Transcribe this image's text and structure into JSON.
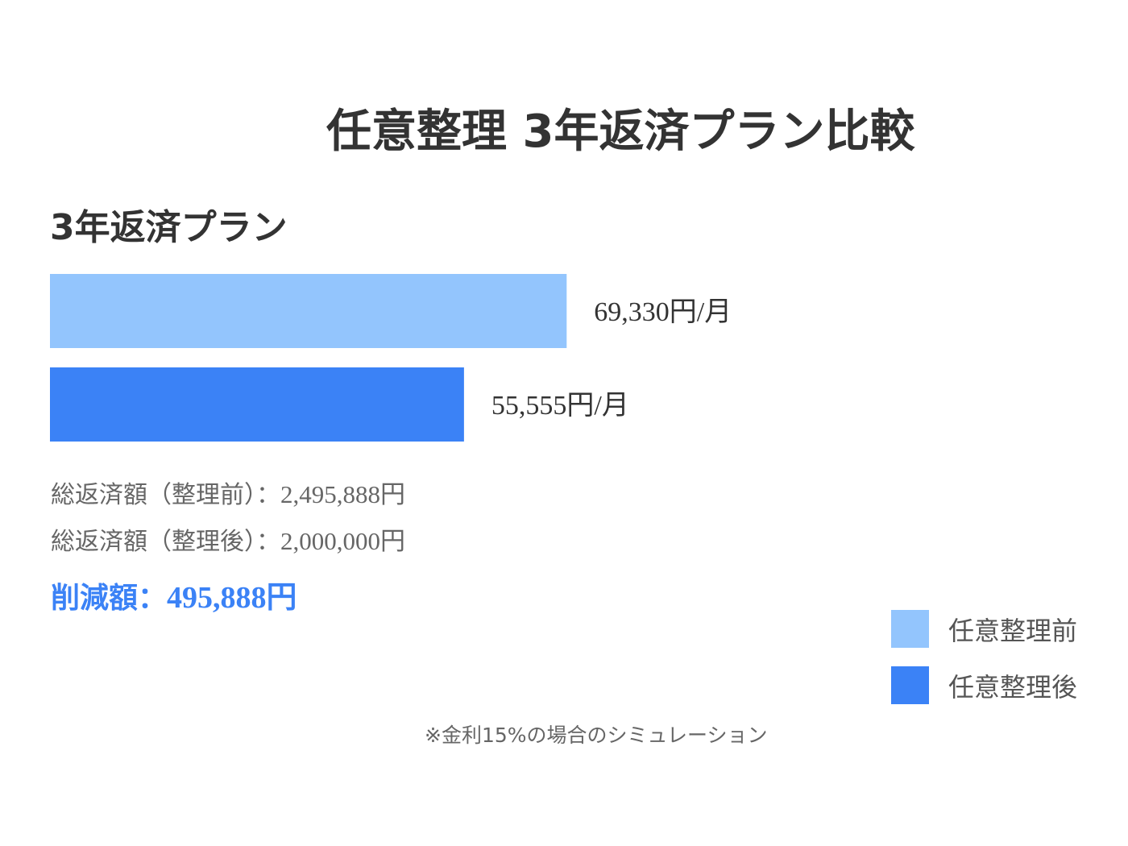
{
  "page_title": "任意整理 3年返済プラン比較",
  "chart_data": {
    "type": "bar",
    "orientation": "horizontal",
    "title": "3年返済プラン",
    "unit": "円/月",
    "xlim": [
      0,
      100000
    ],
    "series": [
      {
        "name": "任意整理前",
        "value": 69330,
        "label": "69,330円/月",
        "color": "#93c5fd"
      },
      {
        "name": "任意整理後",
        "value": 55555,
        "label": "55,555円/月",
        "color": "#3b82f6"
      }
    ],
    "legend_position": "bottom-right"
  },
  "summary": {
    "before_label": "総返済額（整理前）：",
    "before_value": "2,495,888円",
    "after_label": "総返済額（整理後）：",
    "after_value": "2,000,000円",
    "reduction_label": "削減額：",
    "reduction_value": "495,888円",
    "reduction_color": "#3b82f6"
  },
  "footnote": "※金利15%の場合のシミュレーション"
}
